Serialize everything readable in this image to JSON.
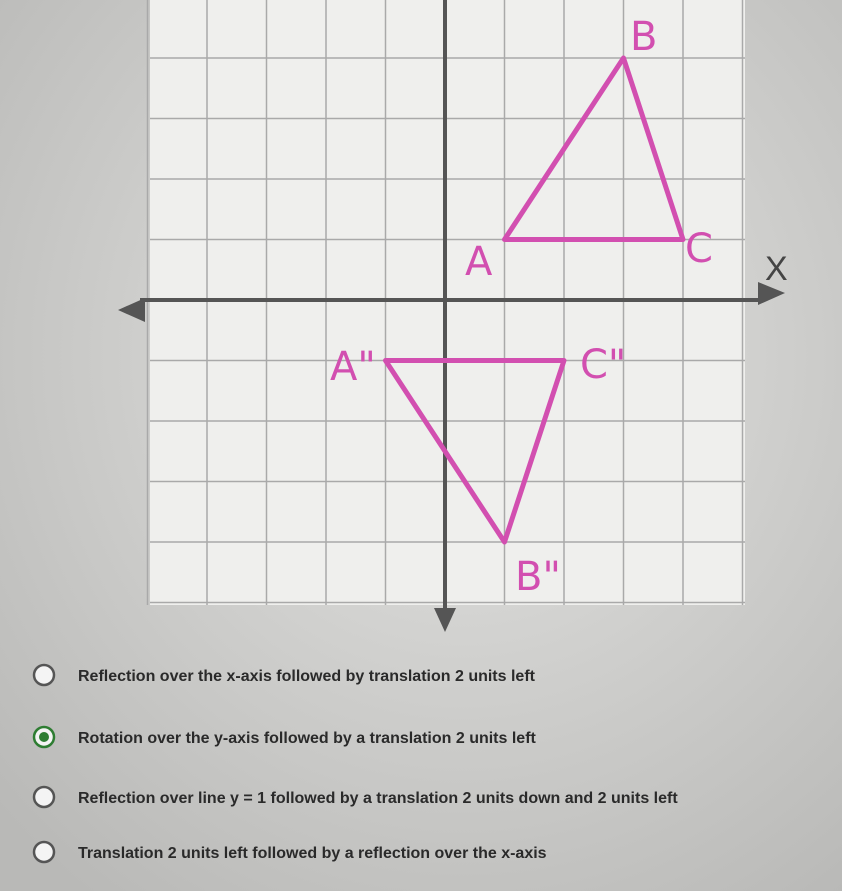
{
  "graph": {
    "axis_label": "X",
    "points": {
      "A": "A",
      "B": "B",
      "C": "C",
      "A2": "A\"",
      "B2": "B\"",
      "C2": "C\""
    }
  },
  "question": {
    "options": [
      "Reflection over the x-axis followed by translation 2 units left",
      "Rotation over the y-axis followed by a translation 2 units left",
      "Reflection over line y = 1 followed by a translation 2 units down and 2 units left",
      "Translation 2 units left followed by a reflection over the x-axis"
    ],
    "selected": 1
  }
}
